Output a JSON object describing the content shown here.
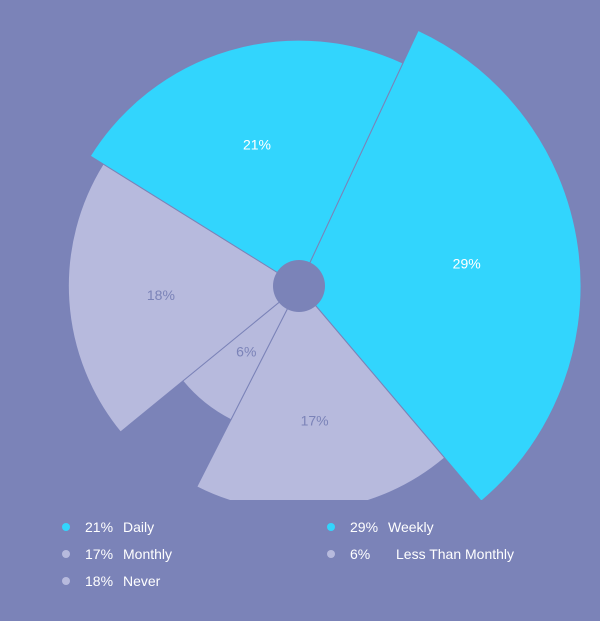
{
  "colors": {
    "background": "#7b83b8",
    "accent": "#32d5fd",
    "muted": "#b7badd",
    "hub": "#7b83b8",
    "text_on_accent": "#ffffff",
    "text_on_muted": "#7b83b8"
  },
  "chart_data": {
    "type": "pie",
    "title": "",
    "slices": [
      {
        "label": "Weekly",
        "value": 29,
        "value_label": "29%",
        "highlight": true
      },
      {
        "label": "Monthly",
        "value": 17,
        "value_label": "17%",
        "highlight": false
      },
      {
        "label": "Less Than Monthly",
        "value": 6,
        "value_label": "6%",
        "highlight": false
      },
      {
        "label": "Never",
        "value": 18,
        "value_label": "18%",
        "highlight": false
      },
      {
        "label": "Daily",
        "value": 21,
        "value_label": "21%",
        "highlight": true
      }
    ],
    "legend": [
      {
        "pct": "21%",
        "label": "Daily",
        "highlight": true
      },
      {
        "pct": "29%",
        "label": "Weekly",
        "highlight": true
      },
      {
        "pct": "17%",
        "label": "Monthly",
        "highlight": false
      },
      {
        "pct": "6%",
        "label": "Less Than Monthly",
        "highlight": false
      },
      {
        "pct": "18%",
        "label": "Never",
        "highlight": false
      }
    ],
    "legend_placement": "bottom"
  }
}
